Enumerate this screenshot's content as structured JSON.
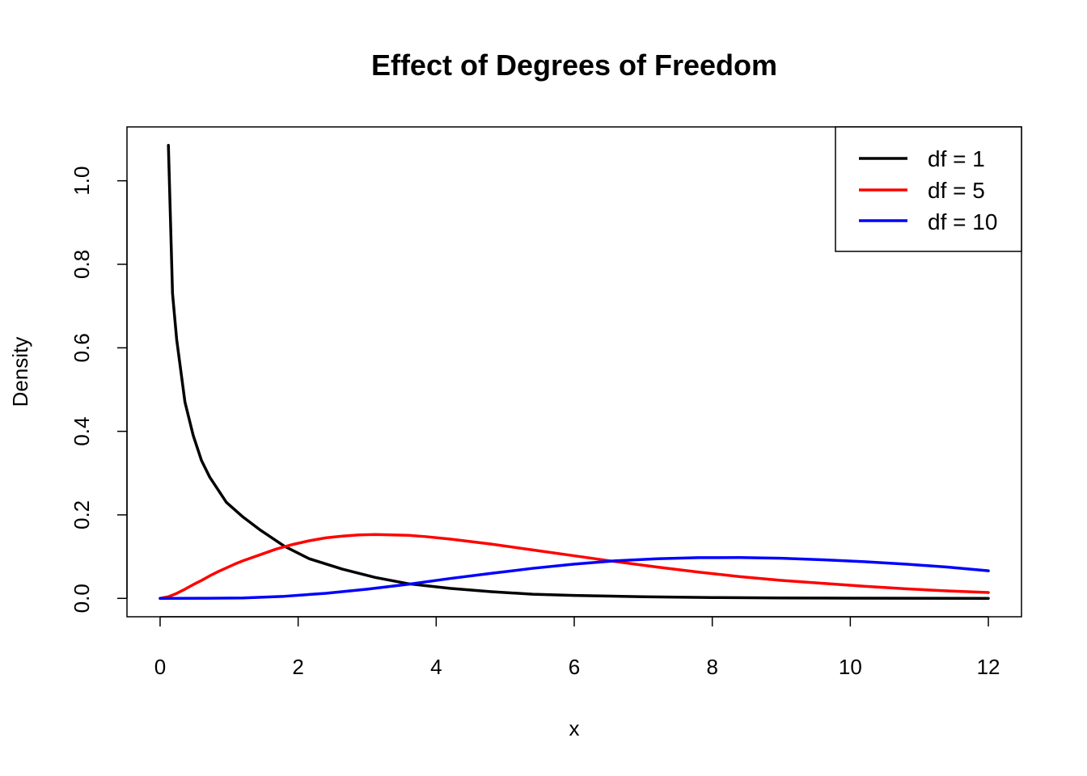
{
  "chart_data": {
    "type": "line",
    "title": "Effect of Degrees of Freedom",
    "xlabel": "x",
    "ylabel": "Density",
    "xlim": [
      -0.48,
      12.48
    ],
    "ylim": [
      -0.044,
      1.129
    ],
    "x_ticks": [
      "0",
      "2",
      "4",
      "6",
      "8",
      "10",
      "12"
    ],
    "y_ticks": [
      "0.0",
      "0.2",
      "0.4",
      "0.6",
      "0.8",
      "1.0"
    ],
    "x_tick_values": [
      0,
      2,
      4,
      6,
      8,
      10,
      12
    ],
    "y_tick_values": [
      0,
      0.2,
      0.4,
      0.6,
      0.8,
      1.0
    ],
    "grid": false,
    "legend_position": "top-right",
    "series": [
      {
        "name": "df = 1",
        "color": "#000000",
        "points": [
          [
            0.12,
            1.085
          ],
          [
            0.18,
            0.73
          ],
          [
            0.24,
            0.62
          ],
          [
            0.36,
            0.47
          ],
          [
            0.48,
            0.39
          ],
          [
            0.6,
            0.33
          ],
          [
            0.72,
            0.29
          ],
          [
            0.84,
            0.26
          ],
          [
            0.96,
            0.23
          ],
          [
            1.2,
            0.195
          ],
          [
            1.44,
            0.165
          ],
          [
            1.8,
            0.125
          ],
          [
            2.16,
            0.095
          ],
          [
            2.64,
            0.07
          ],
          [
            3.12,
            0.05
          ],
          [
            3.6,
            0.035
          ],
          [
            4.2,
            0.024
          ],
          [
            4.8,
            0.016
          ],
          [
            5.4,
            0.01
          ],
          [
            6.0,
            0.007
          ],
          [
            7.0,
            0.004
          ],
          [
            8.0,
            0.002
          ],
          [
            9.0,
            0.001
          ],
          [
            10.0,
            0.0005
          ],
          [
            11.0,
            0.0002
          ],
          [
            12.0,
            0.0001
          ]
        ]
      },
      {
        "name": "df = 5",
        "color": "#ff0000",
        "points": [
          [
            0.0,
            0.0
          ],
          [
            0.12,
            0.004
          ],
          [
            0.24,
            0.012
          ],
          [
            0.36,
            0.022
          ],
          [
            0.48,
            0.033
          ],
          [
            0.6,
            0.043
          ],
          [
            0.72,
            0.054
          ],
          [
            0.84,
            0.064
          ],
          [
            0.96,
            0.073
          ],
          [
            1.08,
            0.082
          ],
          [
            1.2,
            0.09
          ],
          [
            1.44,
            0.104
          ],
          [
            1.68,
            0.118
          ],
          [
            1.92,
            0.129
          ],
          [
            2.16,
            0.138
          ],
          [
            2.4,
            0.145
          ],
          [
            2.64,
            0.149
          ],
          [
            2.88,
            0.152
          ],
          [
            3.12,
            0.153
          ],
          [
            3.36,
            0.152
          ],
          [
            3.6,
            0.151
          ],
          [
            3.84,
            0.148
          ],
          [
            4.2,
            0.142
          ],
          [
            4.8,
            0.13
          ],
          [
            5.4,
            0.116
          ],
          [
            6.0,
            0.102
          ],
          [
            6.6,
            0.088
          ],
          [
            7.2,
            0.075
          ],
          [
            7.8,
            0.063
          ],
          [
            8.4,
            0.052
          ],
          [
            9.0,
            0.043
          ],
          [
            9.6,
            0.036
          ],
          [
            10.2,
            0.029
          ],
          [
            10.8,
            0.023
          ],
          [
            11.4,
            0.018
          ],
          [
            12.0,
            0.014
          ]
        ]
      },
      {
        "name": "df = 10",
        "color": "#0000ff",
        "points": [
          [
            0.0,
            0.0
          ],
          [
            0.6,
            0.0002
          ],
          [
            1.2,
            0.0011
          ],
          [
            1.8,
            0.005
          ],
          [
            2.4,
            0.0122
          ],
          [
            3.0,
            0.022
          ],
          [
            3.6,
            0.0339
          ],
          [
            4.2,
            0.0476
          ],
          [
            4.8,
            0.06
          ],
          [
            5.4,
            0.072
          ],
          [
            6.0,
            0.082
          ],
          [
            6.6,
            0.09
          ],
          [
            7.2,
            0.095
          ],
          [
            7.8,
            0.0975
          ],
          [
            8.4,
            0.0978
          ],
          [
            9.0,
            0.096
          ],
          [
            9.6,
            0.0925
          ],
          [
            10.2,
            0.0878
          ],
          [
            10.8,
            0.082
          ],
          [
            11.4,
            0.075
          ],
          [
            12.0,
            0.066
          ]
        ]
      }
    ]
  }
}
